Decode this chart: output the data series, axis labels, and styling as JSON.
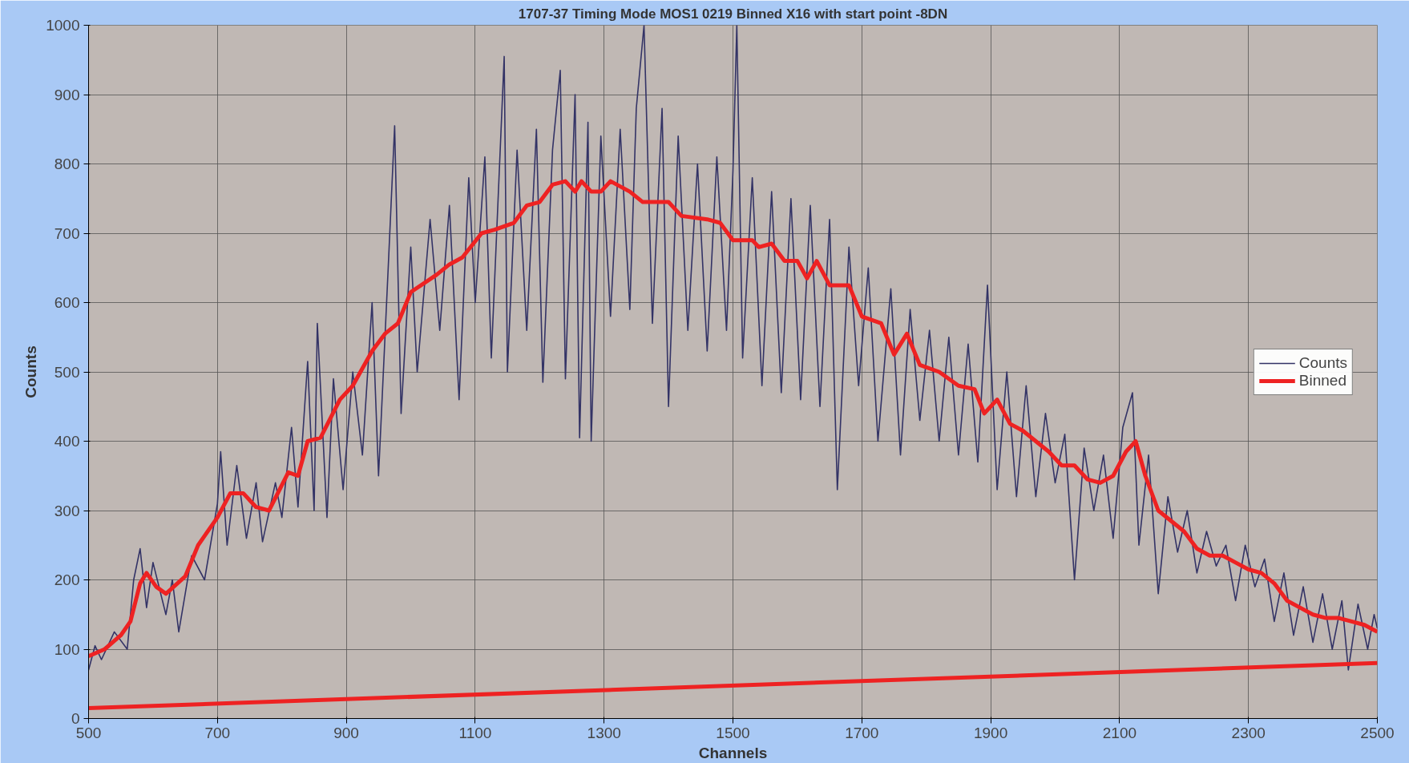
{
  "chart_data": {
    "type": "line",
    "title": "1707-37 Timing Mode MOS1 0219 Binned X16 with start point -8DN",
    "xlabel": "Channels",
    "ylabel": "Counts",
    "xlim": [
      500,
      2500
    ],
    "xticks": [
      500,
      700,
      900,
      1100,
      1300,
      1500,
      1700,
      1900,
      2100,
      2300,
      2500
    ],
    "ylim": [
      0,
      1000
    ],
    "yticks": [
      0,
      100,
      200,
      300,
      400,
      500,
      600,
      700,
      800,
      900,
      1000
    ],
    "grid": true,
    "legend": "right",
    "series": [
      {
        "name": "Counts",
        "color": "#333366",
        "x": [
          500,
          510,
          520,
          540,
          560,
          570,
          580,
          590,
          600,
          620,
          630,
          640,
          660,
          680,
          700,
          705,
          715,
          730,
          745,
          760,
          770,
          790,
          800,
          815,
          825,
          840,
          850,
          855,
          870,
          880,
          895,
          910,
          925,
          940,
          950,
          965,
          975,
          985,
          1000,
          1010,
          1030,
          1045,
          1060,
          1075,
          1090,
          1100,
          1115,
          1125,
          1145,
          1150,
          1165,
          1180,
          1195,
          1205,
          1220,
          1232,
          1240,
          1255,
          1262,
          1275,
          1280,
          1295,
          1310,
          1325,
          1340,
          1350,
          1362,
          1375,
          1390,
          1400,
          1415,
          1430,
          1445,
          1460,
          1475,
          1490,
          1500,
          1506,
          1515,
          1530,
          1545,
          1560,
          1575,
          1590,
          1605,
          1620,
          1635,
          1650,
          1662,
          1680,
          1695,
          1710,
          1725,
          1745,
          1760,
          1775,
          1790,
          1805,
          1820,
          1835,
          1850,
          1865,
          1880,
          1895,
          1910,
          1925,
          1940,
          1955,
          1970,
          1985,
          2000,
          2015,
          2030,
          2045,
          2060,
          2075,
          2090,
          2105,
          2120,
          2130,
          2145,
          2160,
          2175,
          2190,
          2205,
          2220,
          2235,
          2250,
          2265,
          2280,
          2295,
          2310,
          2325,
          2340,
          2355,
          2370,
          2385,
          2400,
          2415,
          2430,
          2445,
          2455,
          2470,
          2485,
          2495,
          2500
        ],
        "values": [
          70,
          105,
          85,
          125,
          100,
          200,
          245,
          160,
          225,
          150,
          200,
          125,
          235,
          200,
          310,
          385,
          250,
          365,
          260,
          340,
          255,
          340,
          290,
          420,
          305,
          515,
          300,
          570,
          290,
          490,
          330,
          500,
          380,
          600,
          350,
          650,
          855,
          440,
          680,
          500,
          720,
          560,
          740,
          460,
          780,
          600,
          810,
          520,
          955,
          500,
          820,
          560,
          850,
          485,
          820,
          935,
          490,
          900,
          405,
          860,
          400,
          840,
          580,
          850,
          590,
          880,
          1000,
          570,
          880,
          450,
          840,
          560,
          800,
          530,
          810,
          560,
          790,
          1000,
          520,
          780,
          480,
          760,
          470,
          750,
          460,
          740,
          450,
          720,
          330,
          680,
          480,
          650,
          400,
          620,
          380,
          590,
          430,
          560,
          400,
          550,
          380,
          540,
          370,
          625,
          330,
          500,
          320,
          480,
          320,
          440,
          340,
          410,
          200,
          390,
          300,
          380,
          260,
          420,
          470,
          250,
          380,
          180,
          320,
          240,
          300,
          210,
          270,
          220,
          250,
          170,
          250,
          190,
          230,
          140,
          210,
          120,
          190,
          110,
          180,
          100,
          170,
          70,
          165,
          100,
          150,
          130
        ]
      },
      {
        "name": "Binned",
        "color": "#ee2222",
        "x": [
          500,
          525,
          550,
          565,
          580,
          590,
          605,
          620,
          650,
          670,
          700,
          720,
          740,
          760,
          780,
          810,
          825,
          840,
          860,
          890,
          910,
          940,
          960,
          980,
          1000,
          1040,
          1060,
          1080,
          1110,
          1130,
          1160,
          1180,
          1200,
          1220,
          1240,
          1255,
          1265,
          1280,
          1295,
          1310,
          1340,
          1360,
          1400,
          1420,
          1460,
          1480,
          1500,
          1530,
          1540,
          1560,
          1580,
          1600,
          1615,
          1630,
          1650,
          1680,
          1700,
          1730,
          1750,
          1770,
          1790,
          1820,
          1850,
          1875,
          1890,
          1910,
          1930,
          1950,
          1970,
          1990,
          2010,
          2030,
          2050,
          2070,
          2090,
          2110,
          2125,
          2140,
          2160,
          2180,
          2200,
          2220,
          2240,
          2260,
          2280,
          2300,
          2320,
          2340,
          2360,
          2380,
          2400,
          2420,
          2440,
          2460,
          2480,
          2500
        ],
        "values": [
          90,
          100,
          120,
          140,
          195,
          210,
          190,
          180,
          205,
          250,
          290,
          325,
          325,
          305,
          300,
          355,
          350,
          400,
          405,
          460,
          480,
          530,
          555,
          570,
          615,
          640,
          655,
          665,
          700,
          705,
          715,
          740,
          745,
          770,
          775,
          760,
          775,
          760,
          760,
          775,
          760,
          745,
          745,
          725,
          720,
          715,
          690,
          690,
          680,
          685,
          660,
          660,
          635,
          660,
          625,
          625,
          580,
          570,
          525,
          555,
          510,
          500,
          480,
          475,
          440,
          460,
          425,
          415,
          400,
          385,
          365,
          365,
          345,
          340,
          350,
          385,
          400,
          350,
          300,
          285,
          270,
          245,
          235,
          235,
          225,
          215,
          210,
          195,
          170,
          160,
          150,
          145,
          145,
          140,
          135,
          125
        ]
      },
      {
        "color": "#ee2222",
        "x": [
          500,
          2500
        ],
        "values": [
          15,
          80
        ]
      }
    ]
  }
}
